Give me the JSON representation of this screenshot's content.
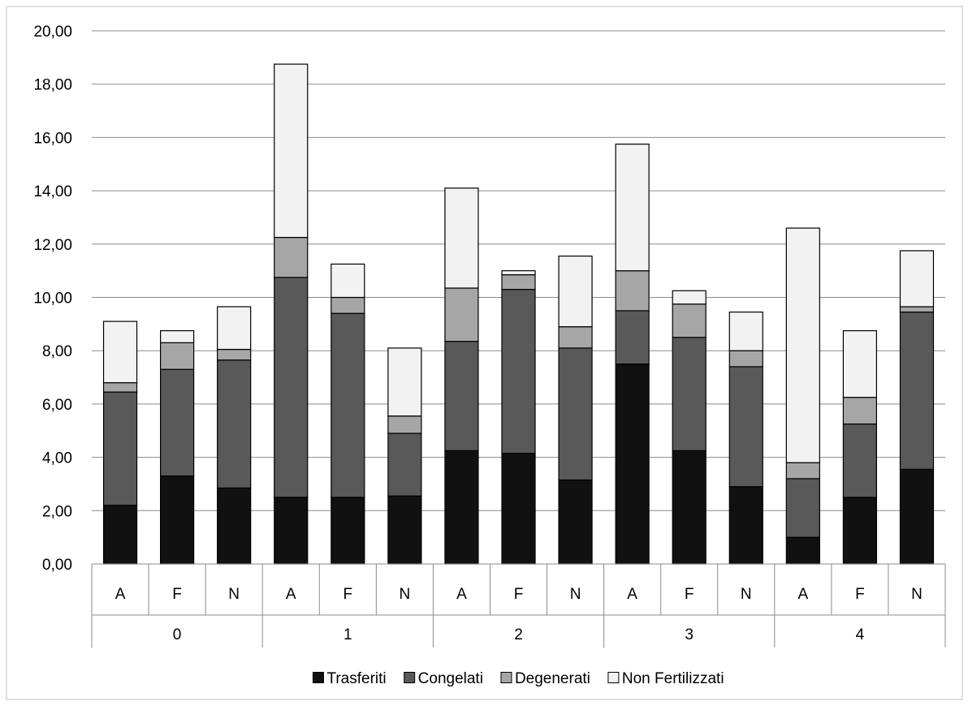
{
  "chart_data": {
    "type": "bar",
    "stacked": true,
    "ylim": [
      0,
      20
    ],
    "y_ticks": [
      "0,00",
      "2,00",
      "4,00",
      "6,00",
      "8,00",
      "10,00",
      "12,00",
      "14,00",
      "16,00",
      "18,00",
      "20,00"
    ],
    "grid": true,
    "legend_position": "bottom",
    "groups": [
      "0",
      "1",
      "2",
      "3",
      "4"
    ],
    "categories": [
      "A",
      "F",
      "N",
      "A",
      "F",
      "N",
      "A",
      "F",
      "N",
      "A",
      "F",
      "N",
      "A",
      "F",
      "N"
    ],
    "series": [
      {
        "name": "Trasferiti",
        "color": "#111111",
        "values": [
          2.2,
          3.3,
          2.85,
          2.5,
          2.5,
          2.55,
          4.25,
          4.15,
          3.15,
          7.5,
          4.25,
          2.9,
          1.0,
          2.5,
          3.55
        ]
      },
      {
        "name": "Congelati",
        "color": "#595959",
        "values": [
          4.25,
          4.0,
          4.8,
          8.25,
          6.9,
          2.35,
          4.1,
          6.15,
          4.95,
          2.0,
          4.25,
          4.5,
          2.2,
          2.75,
          5.9
        ]
      },
      {
        "name": "Degenerati",
        "color": "#a6a6a6",
        "values": [
          0.35,
          1.0,
          0.4,
          1.5,
          0.6,
          0.65,
          2.0,
          0.55,
          0.8,
          1.5,
          1.25,
          0.6,
          0.6,
          1.0,
          0.2
        ]
      },
      {
        "name": "Non Fertilizzati",
        "color": "#f2f2f2",
        "values": [
          2.3,
          0.45,
          1.6,
          6.5,
          1.25,
          2.55,
          3.75,
          0.15,
          2.65,
          4.75,
          0.5,
          1.45,
          8.8,
          2.5,
          2.1
        ]
      }
    ]
  }
}
